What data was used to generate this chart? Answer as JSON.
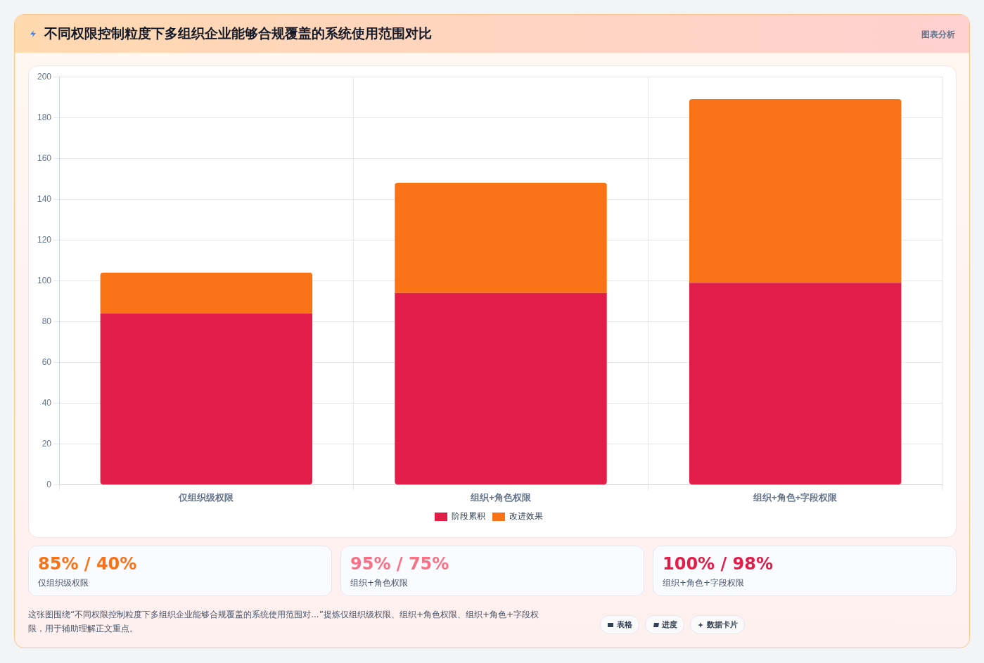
{
  "chart_data": {
    "type": "bar",
    "title": "不同权限控制粒度下多组织企业能够合规覆盖的系统使用范围对比",
    "categories": [
      "仅组织级权限",
      "组织+角色权限",
      "组织+角色+字段权限"
    ],
    "series": [
      {
        "name": "阶段累积",
        "color": "#e11d48",
        "values": [
          84,
          94,
          99
        ]
      },
      {
        "name": "改进效果",
        "color": "#f97316",
        "values": [
          20,
          54,
          90
        ]
      }
    ],
    "stacked": true,
    "ylim": [
      0,
      200
    ],
    "yticks": [
      0,
      20,
      40,
      60,
      80,
      100,
      120,
      140,
      160,
      180,
      200
    ],
    "grid": true,
    "legend": "bottom",
    "annotations": [
      "图表分析",
      "85% / 40%",
      "仅组织级权限",
      "95% / 75%",
      "组织+角色权限",
      "100% / 98%",
      "组织+角色+字段权限",
      "这张图围绕“不同权限控制粒度下多组织企业能够合规覆盖的系统使用范围对...”提炼仅组织级权限、组织+角色权限、组织+角色+字段权限，用于辅助理解正文重点。",
      "表格",
      "进度",
      "数据卡片"
    ]
  }
}
